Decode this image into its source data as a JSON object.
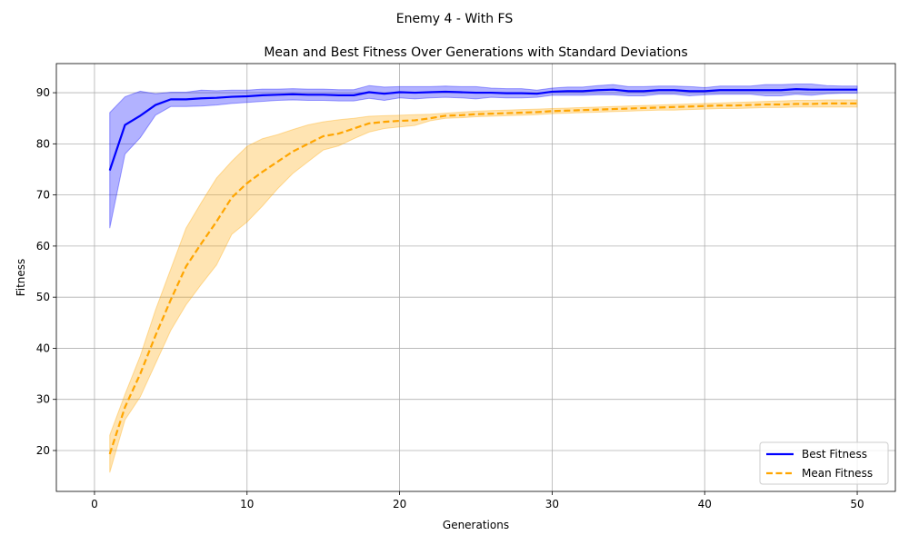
{
  "chart_data": {
    "type": "line",
    "suptitle": "Enemy 4 - With FS",
    "title": "Mean and Best Fitness Over Generations with Standard Deviations",
    "xlabel": "Generations",
    "ylabel": "Fitness",
    "xlim": [
      -2.5,
      52.5
    ],
    "ylim": [
      12,
      95.7
    ],
    "xticks": [
      0,
      10,
      20,
      30,
      40,
      50
    ],
    "yticks": [
      20,
      30,
      40,
      50,
      60,
      70,
      80,
      90
    ],
    "grid": true,
    "legend_position": "lower-right",
    "x": [
      1,
      2,
      3,
      4,
      5,
      6,
      7,
      8,
      9,
      10,
      11,
      12,
      13,
      14,
      15,
      16,
      17,
      18,
      19,
      20,
      21,
      22,
      23,
      24,
      25,
      26,
      27,
      28,
      29,
      30,
      31,
      32,
      33,
      34,
      35,
      36,
      37,
      38,
      39,
      40,
      41,
      42,
      43,
      44,
      45,
      46,
      47,
      48,
      49,
      50
    ],
    "series": [
      {
        "name": "Best Fitness",
        "color": "#0000ff",
        "fill_color": "#0000ff",
        "fill_opacity": 0.3,
        "line_style": "solid",
        "values": [
          74.8,
          83.7,
          85.5,
          87.6,
          88.7,
          88.7,
          88.9,
          89.0,
          89.2,
          89.3,
          89.5,
          89.6,
          89.7,
          89.6,
          89.6,
          89.5,
          89.5,
          90.1,
          89.8,
          90.1,
          90.0,
          90.1,
          90.2,
          90.1,
          90.0,
          90.0,
          89.9,
          89.9,
          89.8,
          90.2,
          90.3,
          90.3,
          90.5,
          90.6,
          90.3,
          90.3,
          90.5,
          90.5,
          90.3,
          90.3,
          90.5,
          90.5,
          90.5,
          90.5,
          90.5,
          90.7,
          90.6,
          90.6,
          90.6,
          90.6
        ],
        "upper": [
          86.1,
          89.2,
          90.3,
          89.8,
          90.1,
          90.1,
          90.5,
          90.4,
          90.5,
          90.5,
          90.7,
          90.7,
          90.8,
          90.7,
          90.7,
          90.6,
          90.6,
          91.4,
          91.1,
          91.2,
          91.2,
          91.2,
          91.3,
          91.2,
          91.2,
          90.9,
          90.8,
          90.8,
          90.5,
          90.9,
          91.1,
          91.1,
          91.4,
          91.6,
          91.2,
          91.2,
          91.3,
          91.3,
          91.2,
          91.0,
          91.3,
          91.3,
          91.3,
          91.6,
          91.6,
          91.7,
          91.7,
          91.4,
          91.3,
          91.3
        ],
        "lower": [
          63.5,
          78.0,
          81.2,
          85.6,
          87.3,
          87.3,
          87.4,
          87.6,
          87.9,
          88.1,
          88.3,
          88.5,
          88.6,
          88.5,
          88.5,
          88.4,
          88.4,
          88.9,
          88.5,
          89.0,
          88.8,
          89.0,
          89.1,
          89.0,
          88.8,
          89.1,
          89.0,
          89.0,
          89.1,
          89.5,
          89.5,
          89.5,
          89.6,
          89.6,
          89.4,
          89.4,
          89.7,
          89.7,
          89.4,
          89.6,
          89.7,
          89.7,
          89.7,
          89.4,
          89.4,
          89.7,
          89.5,
          89.8,
          89.9,
          89.9
        ]
      },
      {
        "name": "Mean Fitness",
        "color": "#ffa500",
        "fill_color": "#ffa500",
        "fill_opacity": 0.3,
        "line_style": "dashed",
        "values": [
          19.3,
          28.5,
          35.0,
          42.5,
          49.5,
          56.0,
          60.5,
          64.8,
          69.5,
          72.3,
          74.5,
          76.5,
          78.5,
          80.0,
          81.5,
          82.0,
          83.0,
          84.0,
          84.3,
          84.5,
          84.6,
          85.0,
          85.5,
          85.6,
          85.8,
          85.9,
          86.0,
          86.1,
          86.2,
          86.4,
          86.5,
          86.6,
          86.7,
          86.8,
          86.9,
          87.0,
          87.1,
          87.2,
          87.3,
          87.4,
          87.5,
          87.5,
          87.6,
          87.7,
          87.7,
          87.8,
          87.8,
          87.9,
          87.9,
          87.9
        ],
        "upper": [
          23.0,
          31.0,
          38.5,
          47.5,
          55.5,
          63.5,
          68.5,
          73.3,
          76.6,
          79.5,
          81.0,
          81.8,
          82.8,
          83.7,
          84.3,
          84.7,
          85.0,
          85.4,
          85.5,
          85.6,
          85.7,
          85.8,
          86.0,
          86.2,
          86.4,
          86.5,
          86.6,
          86.7,
          86.8,
          86.9,
          87.0,
          87.1,
          87.2,
          87.3,
          87.4,
          87.5,
          87.6,
          87.7,
          87.8,
          87.9,
          88.0,
          88.1,
          88.2,
          88.3,
          88.4,
          88.5,
          88.5,
          88.6,
          88.6,
          88.6
        ],
        "lower": [
          15.7,
          26.0,
          30.5,
          37.0,
          43.5,
          48.5,
          52.5,
          56.3,
          62.3,
          64.7,
          67.8,
          71.2,
          74.2,
          76.5,
          78.8,
          79.6,
          81.0,
          82.3,
          83.0,
          83.3,
          83.6,
          84.5,
          85.0,
          85.1,
          85.3,
          85.4,
          85.5,
          85.6,
          85.7,
          85.9,
          86.0,
          86.1,
          86.2,
          86.3,
          86.4,
          86.5,
          86.6,
          86.6,
          86.7,
          86.8,
          86.9,
          86.9,
          87.0,
          87.1,
          87.1,
          87.2,
          87.2,
          87.2,
          87.2,
          87.2
        ]
      }
    ]
  }
}
